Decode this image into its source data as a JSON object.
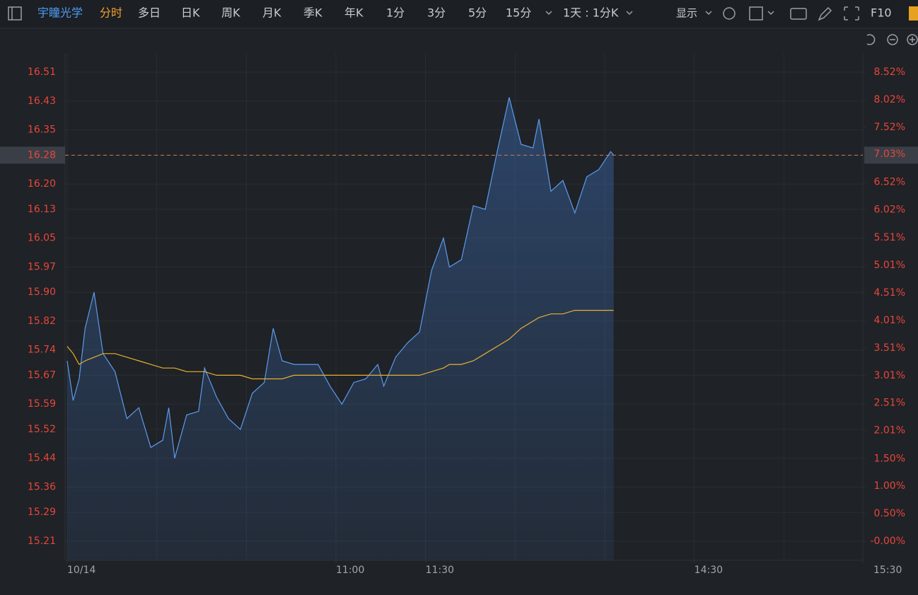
{
  "toolbar": {
    "stock": "宇瞳光学",
    "tabs": [
      "分时",
      "多日",
      "日K",
      "周K",
      "月K",
      "季K",
      "年K",
      "1分",
      "3分",
      "5分",
      "15分"
    ],
    "interval_menu": "1天 : 1分K",
    "display": "显示",
    "f10": "F10"
  },
  "chart_data": {
    "type": "line",
    "x": [
      0,
      2,
      4,
      6,
      9,
      12,
      16,
      20,
      24,
      28,
      32,
      34,
      36,
      40,
      44,
      46,
      50,
      54,
      58,
      62,
      66,
      69,
      72,
      76,
      80,
      84,
      88,
      92,
      96,
      100,
      104,
      106,
      110,
      114,
      118,
      122,
      126,
      128,
      132,
      136,
      140,
      144,
      148,
      152,
      156,
      158,
      162,
      166,
      170,
      174,
      178,
      182,
      183
    ],
    "series": [
      {
        "color": "#5b9bf0",
        "values": [
          15.71,
          15.6,
          15.66,
          15.8,
          15.9,
          15.73,
          15.68,
          15.55,
          15.58,
          15.47,
          15.49,
          15.58,
          15.44,
          15.56,
          15.57,
          15.69,
          15.61,
          15.55,
          15.52,
          15.62,
          15.65,
          15.8,
          15.71,
          15.7,
          15.7,
          15.7,
          15.64,
          15.59,
          15.65,
          15.66,
          15.7,
          15.64,
          15.72,
          15.76,
          15.79,
          15.96,
          16.05,
          15.97,
          15.99,
          16.14,
          16.13,
          16.29,
          16.44,
          16.31,
          16.3,
          16.38,
          16.18,
          16.21,
          16.12,
          16.22,
          16.24,
          16.29,
          16.28
        ]
      },
      {
        "color": "#e8b030",
        "values": [
          15.75,
          15.73,
          15.7,
          15.71,
          15.72,
          15.73,
          15.73,
          15.72,
          15.71,
          15.7,
          15.69,
          15.69,
          15.69,
          15.68,
          15.68,
          15.68,
          15.67,
          15.67,
          15.67,
          15.66,
          15.66,
          15.66,
          15.66,
          15.67,
          15.67,
          15.67,
          15.67,
          15.67,
          15.67,
          15.67,
          15.67,
          15.67,
          15.67,
          15.67,
          15.67,
          15.68,
          15.69,
          15.7,
          15.7,
          15.71,
          15.73,
          15.75,
          15.77,
          15.8,
          15.82,
          15.83,
          15.84,
          15.84,
          15.85,
          15.85,
          15.85,
          15.85,
          15.85
        ]
      }
    ],
    "xlim": [
      0,
      270
    ],
    "xticks": [
      {
        "value": 0,
        "label": "10/14"
      },
      {
        "value": 90,
        "label": "11:00"
      },
      {
        "value": 120,
        "label": "11:30"
      },
      {
        "value": 210,
        "label": "14:30"
      },
      {
        "value": 270,
        "label": "15:30"
      }
    ],
    "xgrid": [
      0,
      30,
      60,
      90,
      120,
      150,
      180,
      210,
      240,
      270
    ],
    "ylim": [
      15.157,
      16.563
    ],
    "yticks": [
      16.51,
      16.43,
      16.35,
      16.28,
      {
        "value": 16.2,
        "label": "16.20"
      },
      16.13,
      16.05,
      15.97,
      {
        "value": 15.9,
        "label": "15.90"
      },
      15.82,
      15.74,
      15.67,
      15.59,
      15.52,
      15.44,
      15.36,
      15.29,
      15.21
    ],
    "y2lim": [
      -0.347,
      8.867
    ],
    "y2ticks": [
      {
        "value": 8.52,
        "label": "8.52%"
      },
      {
        "value": 8.02,
        "label": "8.02%"
      },
      {
        "value": 7.52,
        "label": "7.52%"
      },
      {
        "value": 7.03,
        "label": "7.03%"
      },
      {
        "value": 6.52,
        "label": "6.52%"
      },
      {
        "value": 6.02,
        "label": "6.02%"
      },
      {
        "value": 5.51,
        "label": "5.51%"
      },
      {
        "value": 5.01,
        "label": "5.01%"
      },
      {
        "value": 4.51,
        "label": "4.51%"
      },
      {
        "value": 4.01,
        "label": "4.01%"
      },
      {
        "value": 3.51,
        "label": "3.51%"
      },
      {
        "value": 3.01,
        "label": "3.01%"
      },
      {
        "value": 2.51,
        "label": "2.51%"
      },
      {
        "value": 2.01,
        "label": "2.01%"
      },
      {
        "value": 1.5,
        "label": "1.50%"
      },
      {
        "value": 1,
        "label": "1.00%"
      },
      {
        "value": 0.5,
        "label": "0.50%"
      },
      {
        "value": 0,
        "label": "-0.00%"
      }
    ],
    "last_price_line": 16.28,
    "grid": true,
    "tick_color": "#e8463c"
  }
}
